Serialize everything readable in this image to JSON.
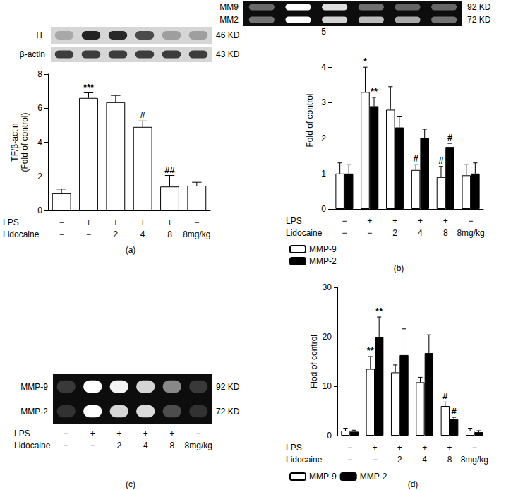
{
  "chart_data": [
    {
      "type": "bar",
      "panel": "(a)",
      "ylabel": "TF/β-actin\n(Fold of control)",
      "categories": [
        null,
        null,
        null,
        null,
        null,
        null
      ],
      "conditions": [
        {
          "label": "LPS",
          "values": [
            "−",
            "+",
            "+",
            "+",
            "+",
            "−"
          ]
        },
        {
          "label": "Lidocaine",
          "values": [
            "−",
            "−",
            "2",
            "4",
            "8",
            "8mg/kg"
          ]
        }
      ],
      "series": [
        {
          "color": "#ffffff",
          "values": [
            1.0,
            6.6,
            6.35,
            4.9,
            1.4,
            1.45
          ],
          "errors": [
            0.25,
            0.3,
            0.4,
            0.35,
            0.65,
            0.2
          ]
        }
      ],
      "annotations": [
        {
          "series": 0,
          "index": 1,
          "text": "***"
        },
        {
          "series": 0,
          "index": 3,
          "text": "#"
        },
        {
          "series": 0,
          "index": 4,
          "text": "##"
        }
      ],
      "ylim": [
        0,
        8
      ],
      "yticks": [
        0,
        2,
        4,
        6,
        8
      ],
      "grid": false,
      "blot": {
        "bands": [
          {
            "label": "TF",
            "size": "46 KD"
          },
          {
            "label": "β-actin",
            "size": "43 KD"
          }
        ]
      }
    },
    {
      "type": "bar",
      "panel": "(b)",
      "ylabel": "Fold of control",
      "categories": [
        null,
        null,
        null,
        null,
        null,
        null
      ],
      "conditions": [
        {
          "label": "LPS",
          "values": [
            "−",
            "+",
            "+",
            "+",
            "+",
            "−"
          ]
        },
        {
          "label": "Lidocaine",
          "values": [
            "−",
            "−",
            "2",
            "4",
            "8",
            "8mg/kg"
          ]
        }
      ],
      "series": [
        {
          "name": "MMP-9",
          "color": "#ffffff",
          "values": [
            1.0,
            3.3,
            2.8,
            1.1,
            0.9,
            0.95
          ],
          "errors": [
            0.3,
            0.7,
            0.65,
            0.15,
            0.3,
            0.3
          ]
        },
        {
          "name": "MMP-2",
          "color": "#000000",
          "values": [
            1.0,
            2.9,
            2.3,
            2.0,
            1.75,
            1.0
          ],
          "errors": [
            0.25,
            0.25,
            0.3,
            0.25,
            0.1,
            0.3
          ]
        }
      ],
      "annotations": [
        {
          "series": 0,
          "index": 1,
          "text": "*"
        },
        {
          "series": 1,
          "index": 1,
          "text": "**"
        },
        {
          "series": 0,
          "index": 3,
          "text": "#"
        },
        {
          "series": 0,
          "index": 4,
          "text": "#"
        },
        {
          "series": 1,
          "index": 4,
          "text": "#"
        }
      ],
      "ylim": [
        0,
        5
      ],
      "yticks": [
        0,
        1,
        2,
        3,
        4,
        5
      ],
      "grid": false,
      "legend": "bottom",
      "blot": {
        "bands": [
          {
            "label": "MM9",
            "size": "92 KD"
          },
          {
            "label": "MM2",
            "size": "72 KD"
          }
        ]
      }
    },
    {
      "type": "bar",
      "panel": "(d)",
      "ylabel": "Flod of control",
      "categories": [
        null,
        null,
        null,
        null,
        null,
        null
      ],
      "conditions": [
        {
          "label": "LPS",
          "values": [
            "−",
            "+",
            "+",
            "+",
            "+",
            "−"
          ]
        },
        {
          "label": "Lidocaine",
          "values": [
            "−",
            "−",
            "2",
            "4",
            "8",
            "8mg/kg"
          ]
        }
      ],
      "series": [
        {
          "name": "MMP-9",
          "color": "#ffffff",
          "values": [
            1.0,
            13.5,
            12.8,
            10.8,
            6.0,
            1.0
          ],
          "errors": [
            0.5,
            2.5,
            1.5,
            1.0,
            0.8,
            0.5
          ]
        },
        {
          "name": "MMP-2",
          "color": "#000000",
          "values": [
            0.8,
            20.0,
            16.3,
            16.7,
            3.3,
            0.7
          ],
          "errors": [
            0.3,
            4.0,
            5.3,
            3.7,
            0.4,
            0.3
          ]
        }
      ],
      "annotations": [
        {
          "series": 0,
          "index": 1,
          "text": "**"
        },
        {
          "series": 1,
          "index": 1,
          "text": "**"
        },
        {
          "series": 0,
          "index": 4,
          "text": "#"
        },
        {
          "series": 1,
          "index": 4,
          "text": "#"
        }
      ],
      "ylim": [
        0,
        30
      ],
      "yticks": [
        0,
        10,
        20,
        30
      ],
      "grid": false,
      "legend": "bottom",
      "blot": {
        "panel": "(c)",
        "bands": [
          {
            "label": "MMP-9",
            "size": "92 KD"
          },
          {
            "label": "MMP-2",
            "size": "72 KD"
          }
        ]
      }
    }
  ]
}
